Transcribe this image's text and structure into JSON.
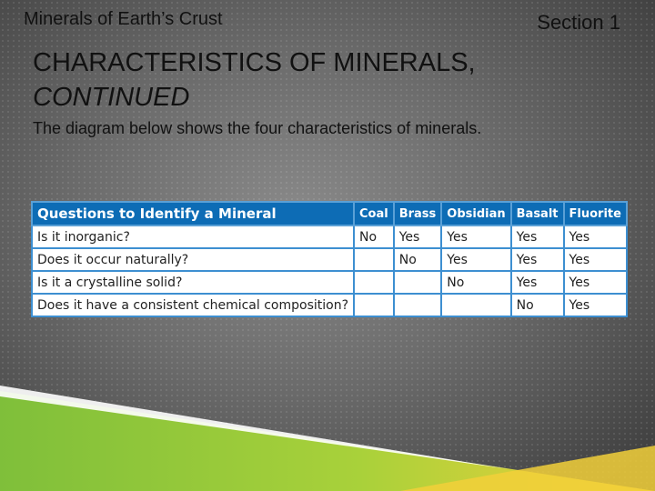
{
  "header": {
    "left": "Minerals of Earth’s Crust",
    "right": "Section 1"
  },
  "title": {
    "line1": "CHARACTERISTICS OF MINERALS,",
    "line2": "CONTINUED"
  },
  "subtitle": "The diagram below shows the four characteristics of minerals.",
  "table": {
    "headers": [
      "Questions to Identify a Mineral",
      "Coal",
      "Brass",
      "Obsidian",
      "Basalt",
      "Fluorite"
    ],
    "rows": [
      [
        "Is it inorganic?",
        "No",
        "Yes",
        "Yes",
        "Yes",
        "Yes"
      ],
      [
        "Does it occur naturally?",
        "",
        "No",
        "Yes",
        "Yes",
        "Yes"
      ],
      [
        "Is it a crystalline solid?",
        "",
        "",
        "No",
        "Yes",
        "Yes"
      ],
      [
        "Does it have a consistent chemical composition?",
        "",
        "",
        "",
        "No",
        "Yes"
      ]
    ]
  },
  "colors": {
    "table_header": "#0d6cb5",
    "table_border": "#3d8fd1",
    "band_green": "#8cc63f",
    "band_yellow": "#f2d03a"
  }
}
